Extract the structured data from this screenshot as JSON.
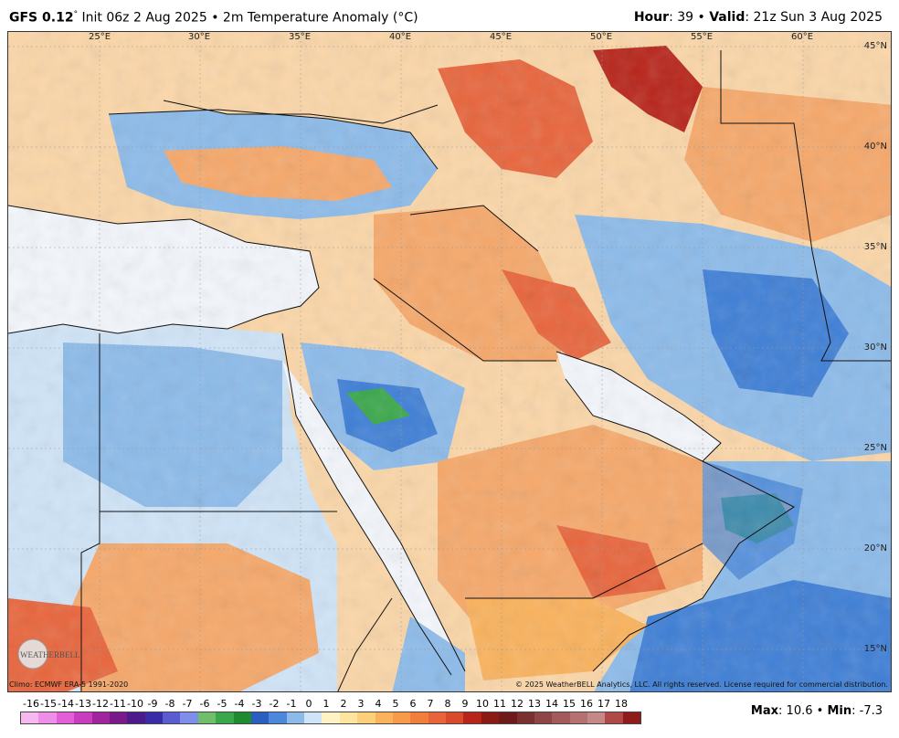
{
  "header": {
    "model": "GFS 0.12",
    "degree": "°",
    "init": "Init 06z 2 Aug 2025",
    "sep": "•",
    "product": "2m Temperature Anomaly (°C)",
    "hour_label": "Hour",
    "hour_value": ": 39",
    "valid_label": "Valid",
    "valid_value": ": 21z Sun 3 Aug 2025"
  },
  "map": {
    "lon_labels": [
      "25°E",
      "30°E",
      "35°E",
      "40°E",
      "45°E",
      "50°E",
      "55°E",
      "60°E"
    ],
    "lat_labels": [
      "45°N",
      "40°N",
      "35°N",
      "30°N",
      "25°N",
      "20°N",
      "15°N"
    ],
    "colors": {
      "ocean": "#f3f6fb",
      "warm_light": "#fbd6a8",
      "warm": "#f6a86a",
      "hot": "#e8653c",
      "very_hot": "#b8241a",
      "cool_light": "#cfe4f7",
      "cool": "#8cbbea",
      "cold": "#3f7fd6",
      "green": "#3aa84a",
      "border": "#111111"
    }
  },
  "footer": {
    "climo": "Climo: ECMWF ERA-5 1991-2020",
    "copyright": "© 2025 WeatherBELL Analytics, LLC. All rights reserved. License required for commercial distribution.",
    "logo_text": "WEATHERBELL"
  },
  "legend": {
    "labels": [
      "-16",
      "-15",
      "-14",
      "-13",
      "-12",
      "-11",
      "-10",
      "-9",
      "-8",
      "-7",
      "-6",
      "-5",
      "-4",
      "-3",
      "-2",
      "-1",
      "0",
      "1",
      "2",
      "3",
      "4",
      "5",
      "6",
      "7",
      "8",
      "9",
      "10",
      "11",
      "12",
      "13",
      "14",
      "15",
      "16",
      "17",
      "18"
    ],
    "colors": [
      "#f7b8f0",
      "#ef8ee6",
      "#e35fd8",
      "#c93cc0",
      "#a0249e",
      "#7a1a8a",
      "#4c1a8a",
      "#3a2ba8",
      "#5a5cd0",
      "#7f8ee8",
      "#6fbf6a",
      "#3aa84a",
      "#1f8a2e",
      "#2a5fc0",
      "#4b87dc",
      "#8cbbea",
      "#cfe4f7",
      "#fff3c4",
      "#fde5a0",
      "#fcd07a",
      "#fab25c",
      "#f79a4a",
      "#f27e3c",
      "#e8653c",
      "#d84a2c",
      "#b8241a",
      "#8a1a14",
      "#6e1a1a",
      "#7b3030",
      "#8e4545",
      "#a25a5a",
      "#b57070",
      "#c48888",
      "#b04848",
      "#8f1b1b"
    ]
  },
  "stats": {
    "max_label": "Max",
    "max_value": ": 10.6",
    "sep": "•",
    "min_label": "Min",
    "min_value": ": -7.3"
  }
}
